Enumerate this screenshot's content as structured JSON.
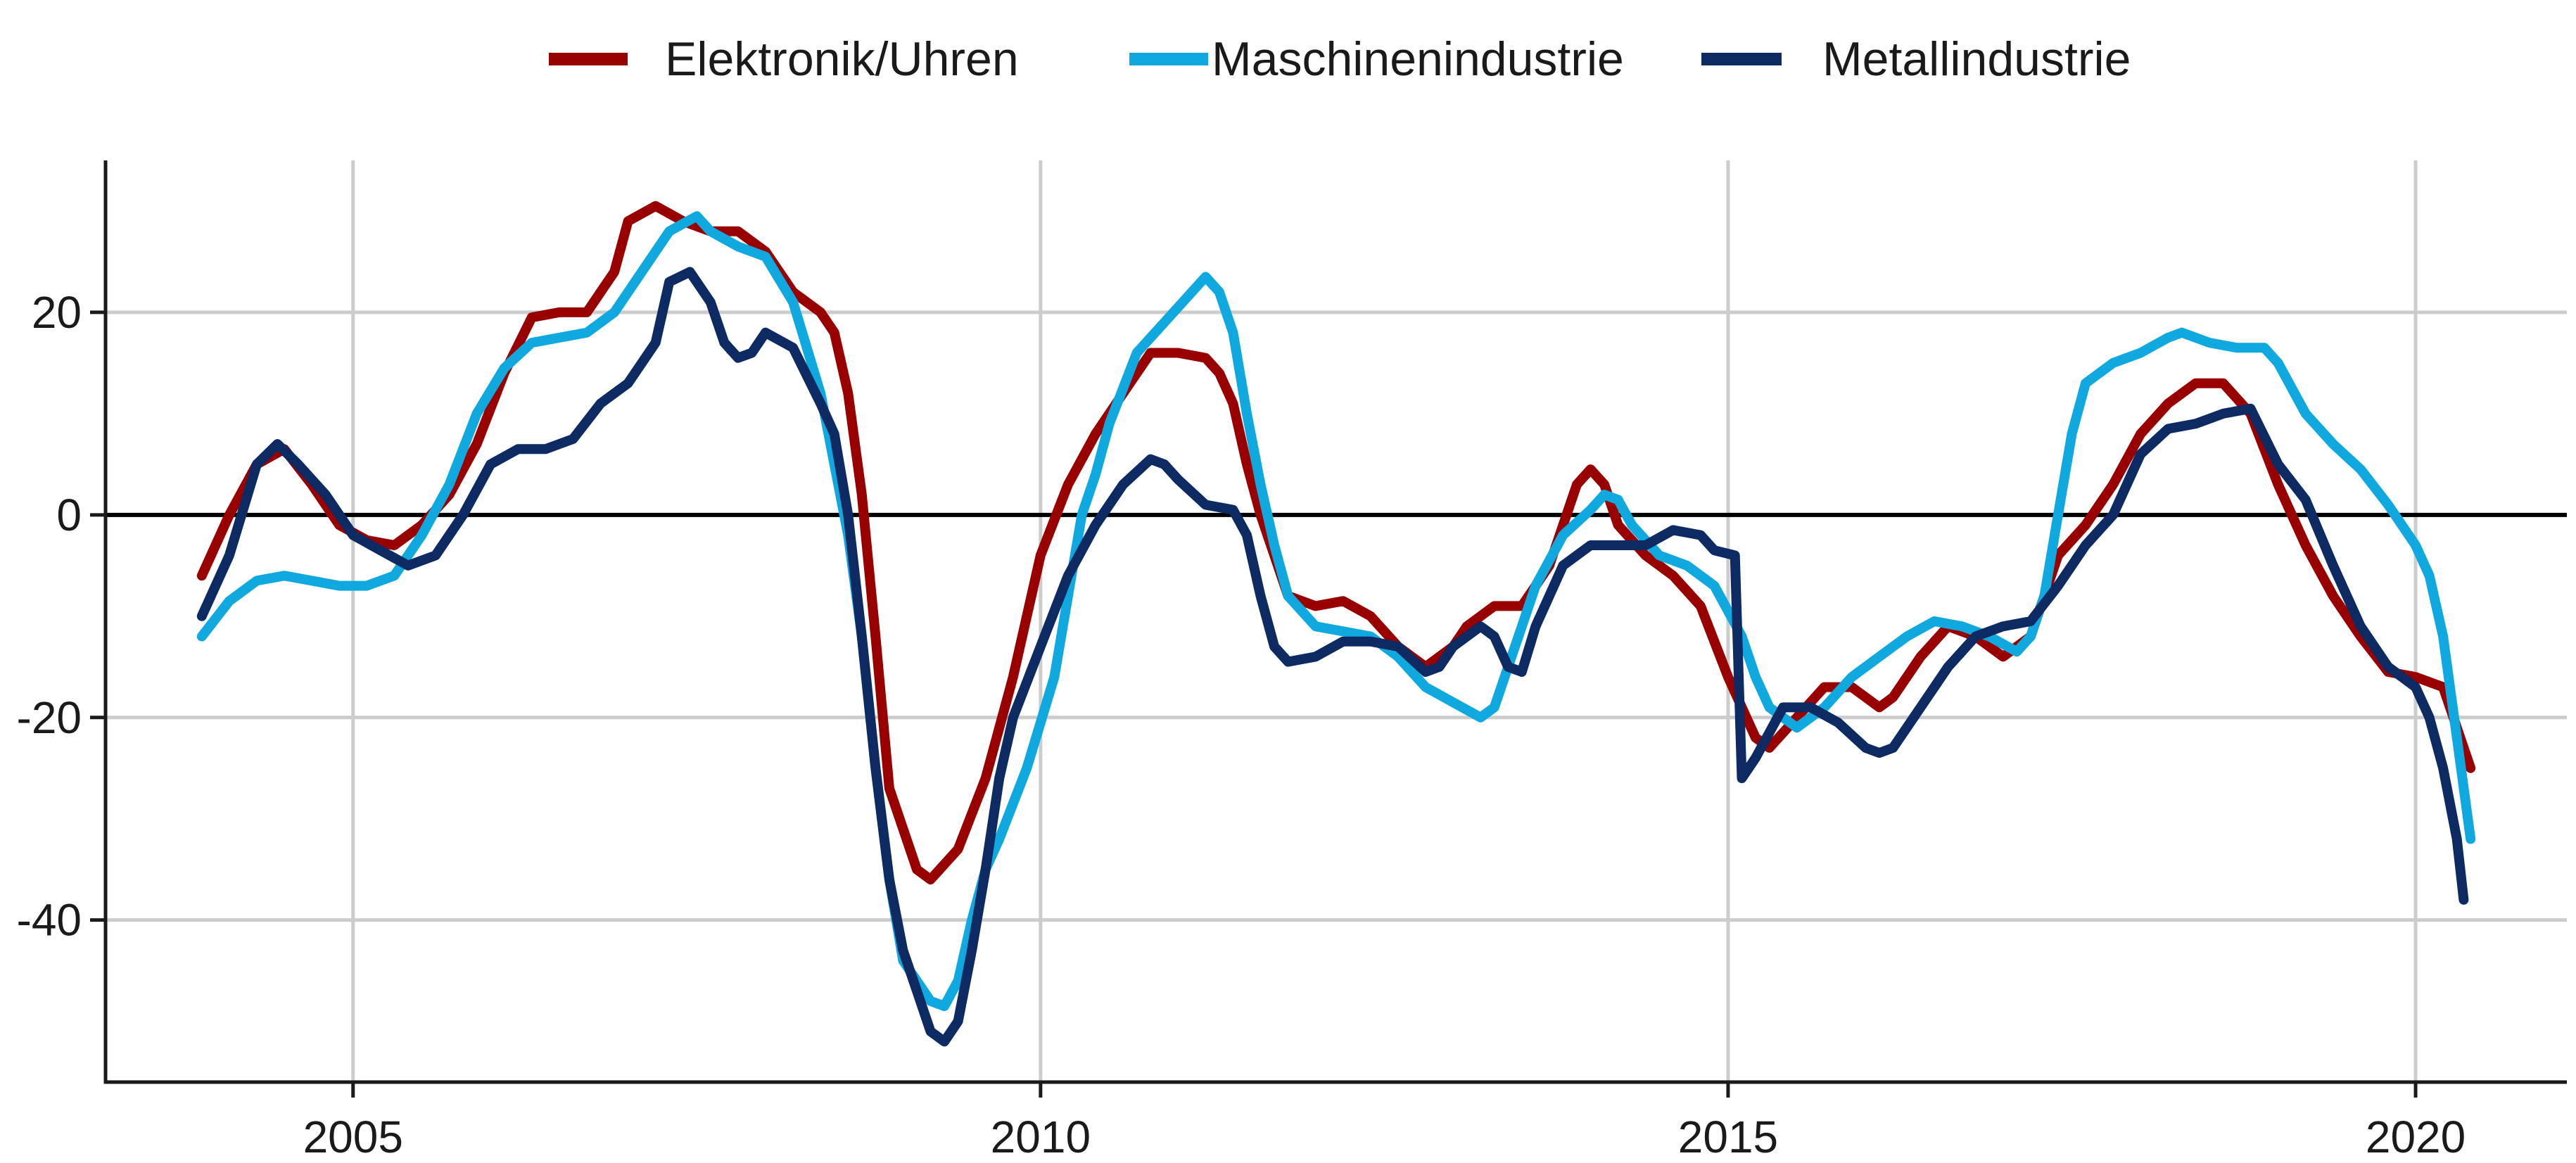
{
  "chart_data": {
    "type": "line",
    "title": "",
    "xlabel": "",
    "ylabel": "",
    "xlim": [
      2003.2,
      2021.1
    ],
    "ylim": [
      -56,
      35
    ],
    "x_ticks": [
      2005,
      2010,
      2015,
      2020
    ],
    "x_tick_labels": [
      "2005",
      "2010",
      "2015",
      "2020"
    ],
    "y_ticks": [
      -40,
      -20,
      0,
      20
    ],
    "y_tick_labels": [
      "-40",
      "-20",
      "0",
      "20"
    ],
    "grid": true,
    "zero_line": true,
    "legend": {
      "position": "top"
    },
    "series": [
      {
        "name": "Elektronik/Uhren",
        "color": "#990000",
        "points": [
          [
            2003.9,
            -6
          ],
          [
            2004.1,
            0
          ],
          [
            2004.3,
            5
          ],
          [
            2004.5,
            6.5
          ],
          [
            2004.7,
            3
          ],
          [
            2004.9,
            -1
          ],
          [
            2005.1,
            -2.5
          ],
          [
            2005.3,
            -3
          ],
          [
            2005.5,
            -1
          ],
          [
            2005.7,
            2
          ],
          [
            2005.9,
            7
          ],
          [
            2006.1,
            14
          ],
          [
            2006.3,
            19.5
          ],
          [
            2006.5,
            20
          ],
          [
            2006.7,
            20
          ],
          [
            2006.9,
            24
          ],
          [
            2007.0,
            29
          ],
          [
            2007.2,
            30.5
          ],
          [
            2007.4,
            29
          ],
          [
            2007.6,
            28
          ],
          [
            2007.8,
            28
          ],
          [
            2008.0,
            26
          ],
          [
            2008.2,
            22
          ],
          [
            2008.4,
            20
          ],
          [
            2008.5,
            18
          ],
          [
            2008.6,
            12
          ],
          [
            2008.7,
            2
          ],
          [
            2008.8,
            -12
          ],
          [
            2008.9,
            -27
          ],
          [
            2009.1,
            -35
          ],
          [
            2009.2,
            -36
          ],
          [
            2009.4,
            -33
          ],
          [
            2009.6,
            -26
          ],
          [
            2009.8,
            -16
          ],
          [
            2010.0,
            -4
          ],
          [
            2010.2,
            3
          ],
          [
            2010.4,
            8
          ],
          [
            2010.6,
            12
          ],
          [
            2010.8,
            16
          ],
          [
            2011.0,
            16
          ],
          [
            2011.2,
            15.5
          ],
          [
            2011.3,
            14
          ],
          [
            2011.4,
            11
          ],
          [
            2011.5,
            5
          ],
          [
            2011.6,
            0
          ],
          [
            2011.7,
            -4
          ],
          [
            2011.8,
            -8
          ],
          [
            2012.0,
            -9
          ],
          [
            2012.2,
            -8.5
          ],
          [
            2012.4,
            -10
          ],
          [
            2012.6,
            -13
          ],
          [
            2012.8,
            -15
          ],
          [
            2012.9,
            -14
          ],
          [
            2013.0,
            -13
          ],
          [
            2013.1,
            -11
          ],
          [
            2013.3,
            -9
          ],
          [
            2013.5,
            -9
          ],
          [
            2013.7,
            -5
          ],
          [
            2013.9,
            3
          ],
          [
            2014.0,
            4.5
          ],
          [
            2014.1,
            3
          ],
          [
            2014.2,
            -1
          ],
          [
            2014.4,
            -4
          ],
          [
            2014.6,
            -6
          ],
          [
            2014.8,
            -9
          ],
          [
            2015.0,
            -16
          ],
          [
            2015.2,
            -22
          ],
          [
            2015.3,
            -23
          ],
          [
            2015.5,
            -20
          ],
          [
            2015.7,
            -17
          ],
          [
            2015.9,
            -17
          ],
          [
            2016.1,
            -19
          ],
          [
            2016.2,
            -18
          ],
          [
            2016.4,
            -14
          ],
          [
            2016.6,
            -11
          ],
          [
            2016.8,
            -12
          ],
          [
            2017.0,
            -14
          ],
          [
            2017.2,
            -12
          ],
          [
            2017.4,
            -4
          ],
          [
            2017.6,
            -1
          ],
          [
            2017.8,
            3
          ],
          [
            2018.0,
            8
          ],
          [
            2018.2,
            11
          ],
          [
            2018.4,
            13
          ],
          [
            2018.6,
            13
          ],
          [
            2018.8,
            10
          ],
          [
            2019.0,
            3
          ],
          [
            2019.2,
            -3
          ],
          [
            2019.4,
            -8
          ],
          [
            2019.6,
            -12
          ],
          [
            2019.8,
            -15.5
          ],
          [
            2020.0,
            -16
          ],
          [
            2020.2,
            -17
          ],
          [
            2020.3,
            -21
          ],
          [
            2020.4,
            -25
          ]
        ]
      },
      {
        "name": "Maschinenindustrie",
        "color": "#0fa8df",
        "points": [
          [
            2003.9,
            -12
          ],
          [
            2004.1,
            -8.5
          ],
          [
            2004.3,
            -6.5
          ],
          [
            2004.5,
            -6
          ],
          [
            2004.7,
            -6.5
          ],
          [
            2004.9,
            -7
          ],
          [
            2005.1,
            -7
          ],
          [
            2005.3,
            -6
          ],
          [
            2005.5,
            -2
          ],
          [
            2005.7,
            3
          ],
          [
            2005.9,
            10
          ],
          [
            2006.1,
            14.5
          ],
          [
            2006.3,
            17
          ],
          [
            2006.5,
            17.5
          ],
          [
            2006.7,
            18
          ],
          [
            2006.9,
            20
          ],
          [
            2007.1,
            24
          ],
          [
            2007.3,
            28
          ],
          [
            2007.5,
            29.5
          ],
          [
            2007.6,
            28
          ],
          [
            2007.8,
            26.5
          ],
          [
            2008.0,
            25.5
          ],
          [
            2008.2,
            21
          ],
          [
            2008.4,
            12
          ],
          [
            2008.5,
            5
          ],
          [
            2008.6,
            -2
          ],
          [
            2008.7,
            -12
          ],
          [
            2008.8,
            -25
          ],
          [
            2008.9,
            -36
          ],
          [
            2009.0,
            -44
          ],
          [
            2009.2,
            -48
          ],
          [
            2009.3,
            -48.5
          ],
          [
            2009.4,
            -46
          ],
          [
            2009.5,
            -40
          ],
          [
            2009.6,
            -35
          ],
          [
            2009.7,
            -32
          ],
          [
            2009.9,
            -25
          ],
          [
            2010.1,
            -16
          ],
          [
            2010.2,
            -8
          ],
          [
            2010.3,
            0
          ],
          [
            2010.4,
            4
          ],
          [
            2010.5,
            9
          ],
          [
            2010.7,
            16
          ],
          [
            2010.9,
            19
          ],
          [
            2011.1,
            22
          ],
          [
            2011.2,
            23.5
          ],
          [
            2011.3,
            22
          ],
          [
            2011.4,
            18
          ],
          [
            2011.5,
            10
          ],
          [
            2011.6,
            3
          ],
          [
            2011.7,
            -3
          ],
          [
            2011.8,
            -8
          ],
          [
            2012.0,
            -11
          ],
          [
            2012.2,
            -11.5
          ],
          [
            2012.4,
            -12
          ],
          [
            2012.6,
            -14
          ],
          [
            2012.8,
            -17
          ],
          [
            2013.0,
            -18.5
          ],
          [
            2013.2,
            -20
          ],
          [
            2013.3,
            -19
          ],
          [
            2013.4,
            -15
          ],
          [
            2013.6,
            -7
          ],
          [
            2013.8,
            -2
          ],
          [
            2014.0,
            0.5
          ],
          [
            2014.1,
            2
          ],
          [
            2014.2,
            1.5
          ],
          [
            2014.3,
            -1
          ],
          [
            2014.5,
            -4
          ],
          [
            2014.7,
            -5
          ],
          [
            2014.9,
            -7
          ],
          [
            2015.1,
            -12
          ],
          [
            2015.2,
            -16
          ],
          [
            2015.3,
            -19
          ],
          [
            2015.5,
            -21
          ],
          [
            2015.7,
            -19
          ],
          [
            2015.9,
            -16
          ],
          [
            2016.1,
            -14
          ],
          [
            2016.3,
            -12
          ],
          [
            2016.5,
            -10.5
          ],
          [
            2016.7,
            -11
          ],
          [
            2016.9,
            -12
          ],
          [
            2017.1,
            -13.5
          ],
          [
            2017.2,
            -12
          ],
          [
            2017.3,
            -8
          ],
          [
            2017.4,
            0
          ],
          [
            2017.5,
            8
          ],
          [
            2017.6,
            13
          ],
          [
            2017.8,
            15
          ],
          [
            2018.0,
            16
          ],
          [
            2018.2,
            17.5
          ],
          [
            2018.3,
            18
          ],
          [
            2018.5,
            17
          ],
          [
            2018.7,
            16.5
          ],
          [
            2018.9,
            16.5
          ],
          [
            2019.0,
            15
          ],
          [
            2019.2,
            10
          ],
          [
            2019.4,
            7
          ],
          [
            2019.6,
            4.5
          ],
          [
            2019.8,
            1
          ],
          [
            2020.0,
            -3
          ],
          [
            2020.1,
            -6
          ],
          [
            2020.2,
            -12
          ],
          [
            2020.3,
            -22
          ],
          [
            2020.4,
            -32
          ]
        ]
      },
      {
        "name": "Metallindustrie",
        "color": "#0d2a63",
        "points": [
          [
            2003.9,
            -10
          ],
          [
            2004.1,
            -4
          ],
          [
            2004.3,
            5
          ],
          [
            2004.45,
            7
          ],
          [
            2004.6,
            5
          ],
          [
            2004.8,
            2
          ],
          [
            2005.0,
            -2
          ],
          [
            2005.2,
            -3.5
          ],
          [
            2005.4,
            -5
          ],
          [
            2005.6,
            -4
          ],
          [
            2005.8,
            0
          ],
          [
            2006.0,
            5
          ],
          [
            2006.2,
            6.5
          ],
          [
            2006.4,
            6.5
          ],
          [
            2006.6,
            7.5
          ],
          [
            2006.8,
            11
          ],
          [
            2007.0,
            13
          ],
          [
            2007.2,
            17
          ],
          [
            2007.3,
            23
          ],
          [
            2007.45,
            24
          ],
          [
            2007.6,
            21
          ],
          [
            2007.7,
            17
          ],
          [
            2007.8,
            15.5
          ],
          [
            2007.9,
            16
          ],
          [
            2008.0,
            18
          ],
          [
            2008.2,
            16.5
          ],
          [
            2008.4,
            11
          ],
          [
            2008.5,
            8
          ],
          [
            2008.6,
            0
          ],
          [
            2008.7,
            -12
          ],
          [
            2008.8,
            -25
          ],
          [
            2008.9,
            -36
          ],
          [
            2009.0,
            -43
          ],
          [
            2009.1,
            -47
          ],
          [
            2009.2,
            -51
          ],
          [
            2009.3,
            -52
          ],
          [
            2009.4,
            -50
          ],
          [
            2009.5,
            -43
          ],
          [
            2009.6,
            -35
          ],
          [
            2009.7,
            -26
          ],
          [
            2009.8,
            -20
          ],
          [
            2010.0,
            -13
          ],
          [
            2010.2,
            -6
          ],
          [
            2010.4,
            -1
          ],
          [
            2010.6,
            3
          ],
          [
            2010.8,
            5.5
          ],
          [
            2010.9,
            5
          ],
          [
            2011.0,
            3.5
          ],
          [
            2011.2,
            1
          ],
          [
            2011.4,
            0.5
          ],
          [
            2011.5,
            -2
          ],
          [
            2011.6,
            -8
          ],
          [
            2011.7,
            -13
          ],
          [
            2011.8,
            -14.5
          ],
          [
            2012.0,
            -14
          ],
          [
            2012.2,
            -12.5
          ],
          [
            2012.4,
            -12.5
          ],
          [
            2012.6,
            -13
          ],
          [
            2012.8,
            -15.5
          ],
          [
            2012.9,
            -15
          ],
          [
            2013.0,
            -13
          ],
          [
            2013.2,
            -11
          ],
          [
            2013.3,
            -12
          ],
          [
            2013.4,
            -15
          ],
          [
            2013.5,
            -15.5
          ],
          [
            2013.6,
            -11
          ],
          [
            2013.8,
            -5
          ],
          [
            2014.0,
            -3
          ],
          [
            2014.2,
            -3
          ],
          [
            2014.4,
            -3
          ],
          [
            2014.6,
            -1.5
          ],
          [
            2014.8,
            -2
          ],
          [
            2014.9,
            -3.5
          ],
          [
            2015.05,
            -4
          ],
          [
            2015.1,
            -26
          ],
          [
            2015.2,
            -24
          ],
          [
            2015.4,
            -19
          ],
          [
            2015.6,
            -19
          ],
          [
            2015.8,
            -20.5
          ],
          [
            2016.0,
            -23
          ],
          [
            2016.1,
            -23.5
          ],
          [
            2016.2,
            -23
          ],
          [
            2016.4,
            -19
          ],
          [
            2016.6,
            -15
          ],
          [
            2016.8,
            -12
          ],
          [
            2017.0,
            -11
          ],
          [
            2017.2,
            -10.5
          ],
          [
            2017.4,
            -7
          ],
          [
            2017.6,
            -3
          ],
          [
            2017.8,
            0
          ],
          [
            2018.0,
            6
          ],
          [
            2018.2,
            8.5
          ],
          [
            2018.4,
            9
          ],
          [
            2018.6,
            10
          ],
          [
            2018.8,
            10.5
          ],
          [
            2019.0,
            5
          ],
          [
            2019.2,
            1.5
          ],
          [
            2019.4,
            -5
          ],
          [
            2019.6,
            -11
          ],
          [
            2019.8,
            -15
          ],
          [
            2020.0,
            -17
          ],
          [
            2020.1,
            -20
          ],
          [
            2020.2,
            -25
          ],
          [
            2020.3,
            -32
          ],
          [
            2020.35,
            -38
          ]
        ]
      }
    ]
  }
}
